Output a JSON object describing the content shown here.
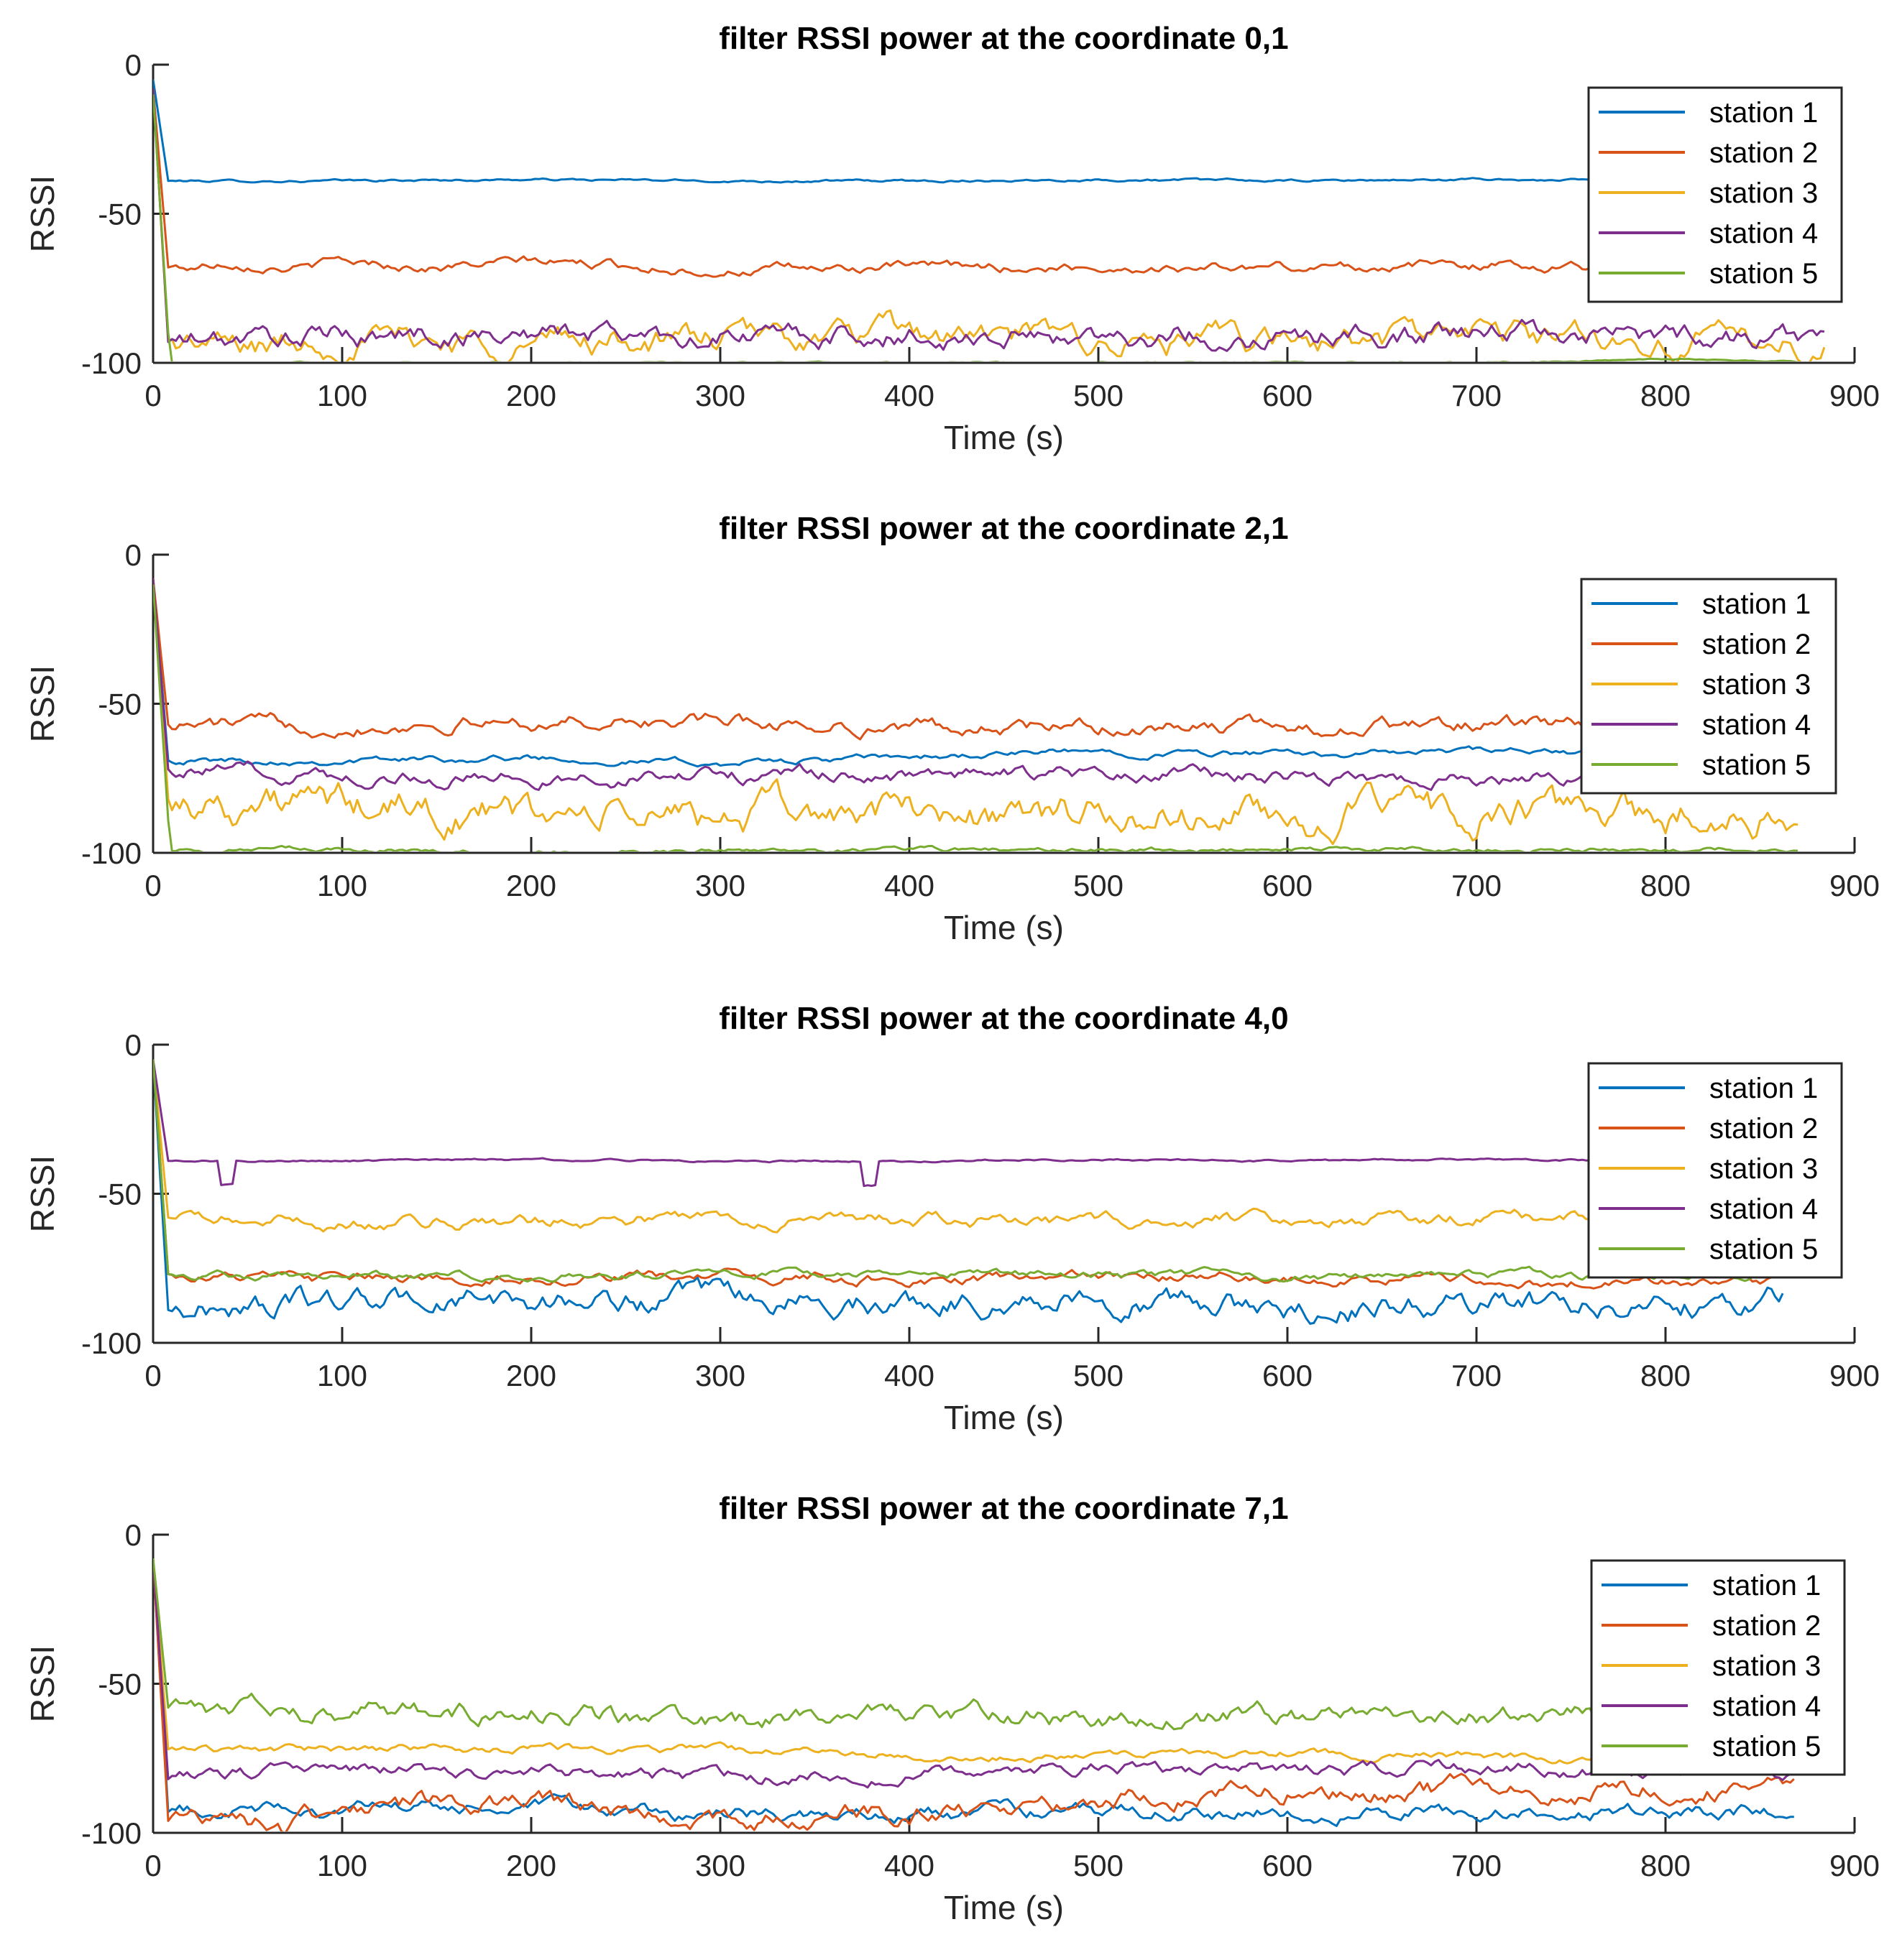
{
  "chart_data": [
    {
      "type": "line",
      "title": "filter RSSI power at the coordinate 0,1",
      "xlabel": "Time (s)",
      "ylabel": "RSSI",
      "xlim": [
        0,
        900
      ],
      "ylim": [
        -100,
        0
      ],
      "xticks": [
        0,
        100,
        200,
        300,
        400,
        500,
        600,
        700,
        800,
        900
      ],
      "yticks": [
        -100,
        -50,
        0
      ],
      "x_end": 885,
      "grid": false,
      "legend_position": "top-right",
      "series": [
        {
          "name": "station 1",
          "color": "#0072BD",
          "start": -5,
          "x": [
            0,
            8,
            100,
            200,
            300,
            400,
            500,
            600,
            700,
            800,
            885
          ],
          "values": [
            -5,
            -39,
            -39,
            -38.5,
            -39,
            -39,
            -38.5,
            -39,
            -38.5,
            -39,
            -39
          ],
          "noise": 0.3
        },
        {
          "name": "station 2",
          "color": "#D95319",
          "start": -8,
          "x": [
            0,
            8,
            20,
            40,
            80,
            100,
            150,
            200,
            300,
            400,
            500,
            600,
            700,
            800,
            885
          ],
          "values": [
            -8,
            -68,
            -68,
            -66,
            -68,
            -66,
            -68,
            -66,
            -69,
            -68,
            -68,
            -68,
            -67,
            -68,
            -68
          ],
          "noise": 1.2
        },
        {
          "name": "station 3",
          "color": "#EDB120",
          "start": -8,
          "x": [
            0,
            8,
            50,
            100,
            200,
            300,
            400,
            500,
            600,
            700,
            800,
            885
          ],
          "values": [
            -8,
            -93,
            -95,
            -92,
            -93,
            -92,
            -91,
            -93,
            -94,
            -90,
            -93,
            -94
          ],
          "noise": 3.5
        },
        {
          "name": "station 4",
          "color": "#7E2F8E",
          "start": -8,
          "x": [
            0,
            8,
            100,
            200,
            300,
            400,
            500,
            600,
            700,
            800,
            885
          ],
          "values": [
            -8,
            -93,
            -91,
            -90,
            -91,
            -91,
            -91,
            -91,
            -90,
            -91,
            -91
          ],
          "noise": 2.8
        },
        {
          "name": "station 5",
          "color": "#77AC30",
          "start": -10,
          "x": [
            0,
            9,
            100,
            200,
            300,
            400,
            500,
            600,
            700,
            800,
            830,
            885
          ],
          "values": [
            -10,
            -100,
            -100,
            -100,
            -100,
            -100,
            -100,
            -100,
            -100,
            -99,
            -99,
            -100
          ],
          "noise": 0.2
        }
      ]
    },
    {
      "type": "line",
      "title": "filter RSSI power at the coordinate 2,1",
      "xlabel": "Time (s)",
      "ylabel": "RSSI",
      "xlim": [
        0,
        900
      ],
      "ylim": [
        -100,
        0
      ],
      "xticks": [
        0,
        100,
        200,
        300,
        400,
        500,
        600,
        700,
        800,
        900
      ],
      "yticks": [
        -100,
        -50,
        0
      ],
      "x_end": 870,
      "grid": false,
      "legend_position": "top-right",
      "series": [
        {
          "name": "station 1",
          "color": "#0072BD",
          "start": -8,
          "x": [
            0,
            8,
            100,
            200,
            300,
            400,
            500,
            600,
            700,
            800,
            870
          ],
          "values": [
            -8,
            -69,
            -69,
            -68,
            -70,
            -68,
            -66,
            -67,
            -66,
            -67,
            -66
          ],
          "noise": 0.8
        },
        {
          "name": "station 2",
          "color": "#D95319",
          "start": -8,
          "x": [
            0,
            8,
            100,
            200,
            300,
            400,
            500,
            600,
            700,
            800,
            870
          ],
          "values": [
            -8,
            -57,
            -57,
            -56,
            -56,
            -58,
            -58,
            -58,
            -57,
            -58,
            -58
          ],
          "noise": 1.8
        },
        {
          "name": "station 3",
          "color": "#EDB120",
          "start": -8,
          "x": [
            0,
            8,
            100,
            200,
            300,
            400,
            500,
            600,
            700,
            800,
            870
          ],
          "values": [
            -8,
            -82,
            -85,
            -88,
            -88,
            -86,
            -88,
            -88,
            -87,
            -88,
            -87
          ],
          "noise": 4.5
        },
        {
          "name": "station 4",
          "color": "#7E2F8E",
          "start": -8,
          "x": [
            0,
            8,
            100,
            200,
            300,
            400,
            500,
            600,
            700,
            800,
            870
          ],
          "values": [
            -8,
            -72,
            -74,
            -75,
            -74,
            -74,
            -74,
            -74,
            -75,
            -73,
            -73
          ],
          "noise": 1.8
        },
        {
          "name": "station 5",
          "color": "#77AC30",
          "start": -10,
          "x": [
            0,
            9,
            100,
            200,
            300,
            400,
            500,
            600,
            700,
            800,
            870
          ],
          "values": [
            -10,
            -99,
            -99,
            -100,
            -99,
            -99,
            -99,
            -99,
            -99,
            -99,
            -99
          ],
          "noise": 0.6
        }
      ]
    },
    {
      "type": "line",
      "title": "filter RSSI power at the coordinate 4,0",
      "xlabel": "Time (s)",
      "ylabel": "RSSI",
      "xlim": [
        0,
        900
      ],
      "ylim": [
        -100,
        0
      ],
      "xticks": [
        0,
        100,
        200,
        300,
        400,
        500,
        600,
        700,
        800,
        900
      ],
      "yticks": [
        -100,
        -50,
        0
      ],
      "x_end": 862,
      "grid": false,
      "legend_position": "top-right",
      "series": [
        {
          "name": "station 1",
          "color": "#0072BD",
          "start": -5,
          "x": [
            0,
            8,
            100,
            200,
            300,
            400,
            500,
            600,
            700,
            800,
            862
          ],
          "values": [
            -5,
            -89,
            -86,
            -86,
            -86,
            -86,
            -85,
            -89,
            -87,
            -87,
            -84
          ],
          "noise": 3.0
        },
        {
          "name": "station 2",
          "color": "#D95319",
          "start": -5,
          "x": [
            0,
            8,
            100,
            200,
            300,
            400,
            500,
            600,
            700,
            800,
            862
          ],
          "values": [
            -5,
            -77,
            -79,
            -78,
            -78,
            -79,
            -78,
            -78,
            -79,
            -80,
            -79
          ],
          "noise": 1.3
        },
        {
          "name": "station 3",
          "color": "#EDB120",
          "start": -5,
          "x": [
            0,
            8,
            100,
            200,
            300,
            400,
            500,
            600,
            700,
            800,
            862
          ],
          "values": [
            -5,
            -58,
            -60,
            -59,
            -58,
            -59,
            -59,
            -58,
            -58,
            -59,
            -59
          ],
          "noise": 1.6
        },
        {
          "name": "station 4",
          "color": "#7E2F8E",
          "start": -5,
          "x": [
            0,
            8,
            34,
            35,
            43,
            44,
            100,
            200,
            300,
            374,
            375,
            383,
            384,
            400,
            500,
            600,
            700,
            800,
            862
          ],
          "values": [
            -5,
            -39,
            -39,
            -47,
            -47,
            -39,
            -39,
            -38.5,
            -39,
            -39,
            -47,
            -47,
            -39,
            -39,
            -38.5,
            -39,
            -38.5,
            -39,
            -39
          ],
          "noise": 0.25
        },
        {
          "name": "station 5",
          "color": "#77AC30",
          "start": -5,
          "x": [
            0,
            8,
            100,
            200,
            300,
            400,
            500,
            600,
            700,
            800,
            862
          ],
          "values": [
            -5,
            -77,
            -78,
            -77,
            -77,
            -77,
            -77,
            -78,
            -77,
            -78,
            -77
          ],
          "noise": 1.0
        }
      ]
    },
    {
      "type": "line",
      "title": "filter RSSI power at the coordinate 7,1",
      "xlabel": "Time (s)",
      "ylabel": "RSSI",
      "xlim": [
        0,
        900
      ],
      "ylim": [
        -100,
        0
      ],
      "xticks": [
        0,
        100,
        200,
        300,
        400,
        500,
        600,
        700,
        800,
        900
      ],
      "yticks": [
        -100,
        -50,
        0
      ],
      "x_end": 868,
      "grid": false,
      "legend_position": "top-right",
      "series": [
        {
          "name": "station 1",
          "color": "#0072BD",
          "start": -8,
          "x": [
            0,
            8,
            100,
            200,
            300,
            400,
            500,
            600,
            700,
            800,
            868
          ],
          "values": [
            -8,
            -93,
            -92,
            -92,
            -94,
            -94,
            -93,
            -93,
            -93,
            -93,
            -92
          ],
          "noise": 1.8
        },
        {
          "name": "station 2",
          "color": "#D95319",
          "start": -8,
          "x": [
            0,
            8,
            40,
            70,
            100,
            200,
            300,
            400,
            500,
            600,
            700,
            800,
            868
          ],
          "values": [
            -8,
            -96,
            -92,
            -99,
            -90,
            -91,
            -96,
            -93,
            -88,
            -86,
            -86,
            -85,
            -86
          ],
          "noise": 2.5
        },
        {
          "name": "station 3",
          "color": "#EDB120",
          "start": -8,
          "x": [
            0,
            8,
            100,
            200,
            300,
            400,
            500,
            600,
            700,
            800,
            868
          ],
          "values": [
            -8,
            -72,
            -72,
            -72,
            -72,
            -74,
            -74,
            -73,
            -74,
            -75,
            -75
          ],
          "noise": 1.0
        },
        {
          "name": "station 4",
          "color": "#7E2F8E",
          "start": -8,
          "x": [
            0,
            8,
            100,
            200,
            300,
            400,
            500,
            600,
            700,
            800,
            868
          ],
          "values": [
            -8,
            -82,
            -78,
            -80,
            -81,
            -80,
            -78,
            -80,
            -78,
            -80,
            -80
          ],
          "noise": 1.6
        },
        {
          "name": "station 5",
          "color": "#77AC30",
          "start": -8,
          "x": [
            0,
            8,
            100,
            200,
            300,
            400,
            500,
            600,
            700,
            800,
            868
          ],
          "values": [
            -8,
            -58,
            -60,
            -60,
            -64,
            -60,
            -62,
            -61,
            -60,
            -62,
            -62
          ],
          "noise": 2.4
        }
      ]
    }
  ]
}
